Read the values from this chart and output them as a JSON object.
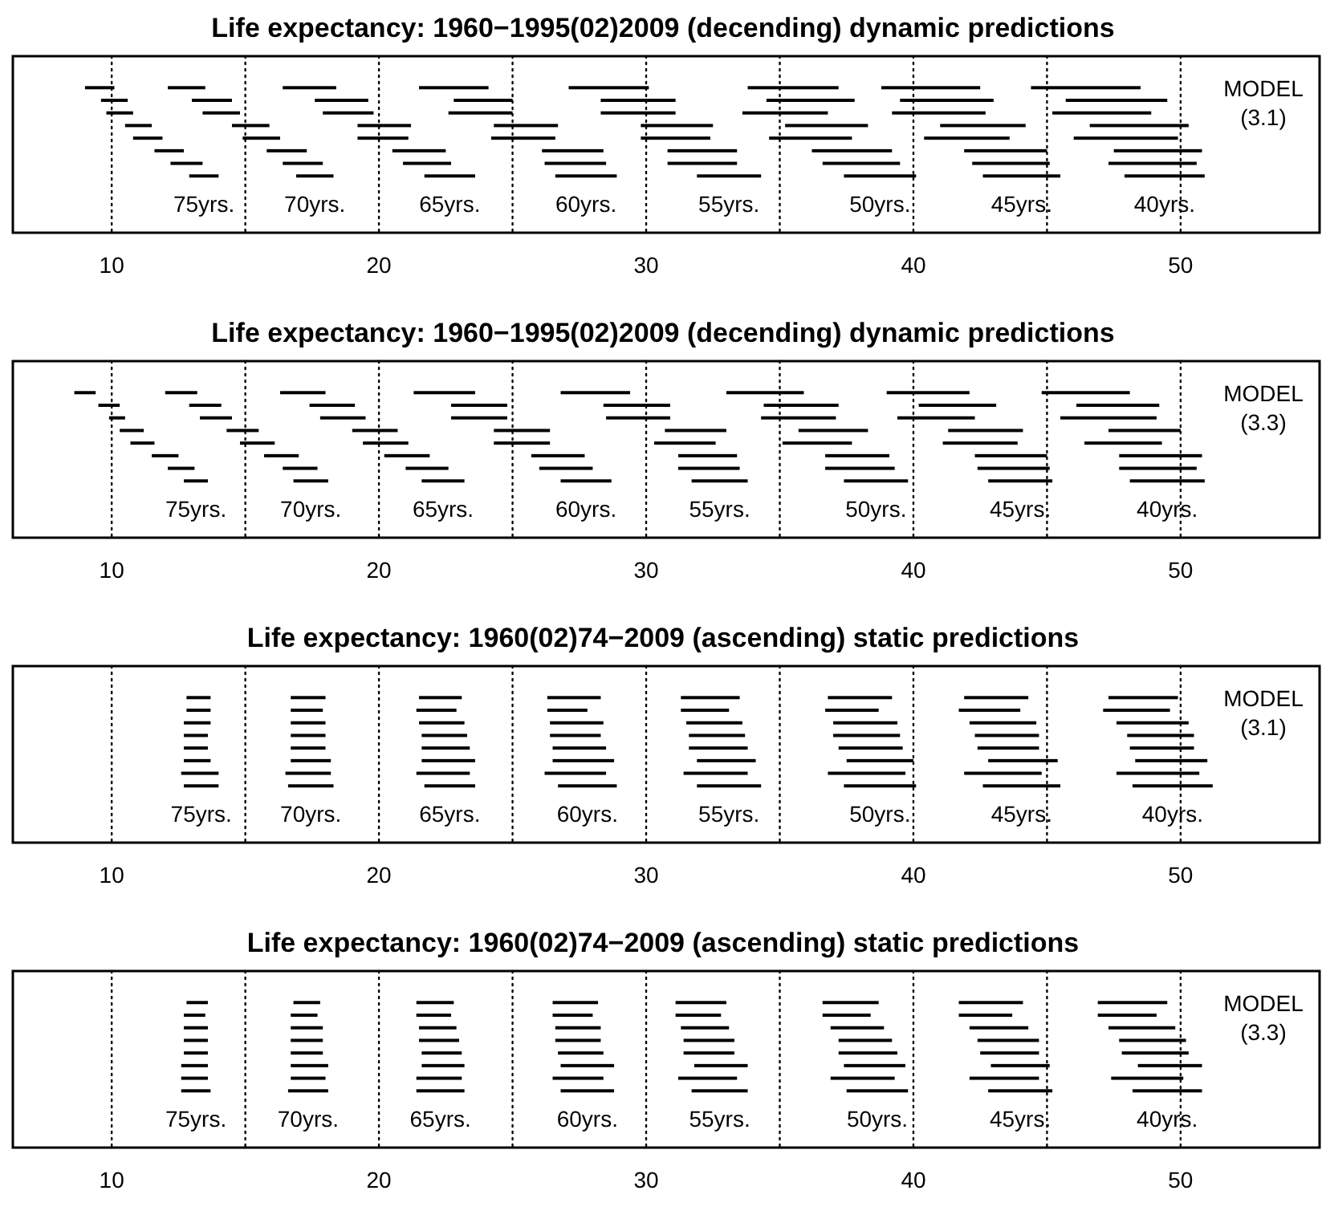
{
  "chart_data": [
    {
      "type": "bar",
      "orientation": "horizontal",
      "title": "Life expectancy: 1960−1995(02)2009 (decending) dynamic predictions",
      "categories": [
        null,
        null,
        null,
        null,
        null,
        null,
        null,
        null,
        null,
        null,
        null,
        null,
        null,
        null
      ],
      "xlim": [
        6.3,
        55.2
      ],
      "xticks": [
        10,
        20,
        30,
        40,
        50
      ],
      "tick_labels": "x",
      "series": [
        {
          "color": "#000000",
          "base": [
            null,
            null,
            9.0,
            9.6,
            9.8,
            10.5,
            10.8,
            11.6,
            12.2,
            12.9,
            null,
            null,
            null,
            null
          ],
          "values": [
            null,
            null,
            1.1,
            1.0,
            1.0,
            1.0,
            1.1,
            1.1,
            1.2,
            1.1,
            null,
            null,
            null,
            null
          ]
        },
        {
          "color": "#000000",
          "base": [
            null,
            null,
            12.1,
            13.0,
            13.4,
            14.5,
            14.9,
            15.8,
            16.4,
            16.9,
            null,
            null,
            null,
            null
          ],
          "values": [
            null,
            null,
            1.4,
            1.5,
            1.4,
            1.4,
            1.4,
            1.5,
            1.5,
            1.4,
            null,
            null,
            null,
            null
          ]
        },
        {
          "color": "#000000",
          "base": [
            null,
            null,
            16.4,
            17.6,
            17.9,
            19.2,
            19.2,
            20.5,
            20.9,
            21.7,
            null,
            null,
            null,
            null
          ],
          "values": [
            null,
            null,
            2.0,
            2.0,
            1.9,
            2.0,
            1.9,
            2.0,
            1.8,
            1.9,
            null,
            null,
            null,
            null
          ]
        },
        {
          "color": "#000000",
          "base": [
            null,
            null,
            21.5,
            22.8,
            22.6,
            24.3,
            24.2,
            26.1,
            26.2,
            26.6,
            null,
            null,
            null,
            null
          ],
          "values": [
            null,
            null,
            2.6,
            2.2,
            2.4,
            2.4,
            2.4,
            2.3,
            2.3,
            2.3,
            null,
            null,
            null,
            null
          ]
        },
        {
          "color": "#000000",
          "base": [
            null,
            null,
            27.1,
            28.3,
            28.3,
            29.8,
            29.8,
            30.8,
            30.8,
            31.9,
            null,
            null,
            null,
            null
          ],
          "values": [
            null,
            null,
            3.0,
            2.8,
            2.8,
            2.7,
            2.6,
            2.6,
            2.6,
            2.4,
            null,
            null,
            null,
            null
          ]
        },
        {
          "color": "#000000",
          "base": [
            null,
            null,
            33.8,
            34.5,
            33.6,
            35.2,
            34.6,
            36.2,
            36.6,
            37.4,
            null,
            null,
            null,
            null
          ],
          "values": [
            null,
            null,
            3.4,
            3.3,
            3.2,
            3.1,
            3.1,
            3.0,
            2.9,
            2.7,
            null,
            null,
            null,
            null
          ]
        },
        {
          "color": "#000000",
          "base": [
            null,
            null,
            38.8,
            39.5,
            39.2,
            41.0,
            40.4,
            41.9,
            42.2,
            42.6,
            null,
            null,
            null,
            null
          ],
          "values": [
            null,
            null,
            3.7,
            3.5,
            3.5,
            3.2,
            3.2,
            3.1,
            2.9,
            2.9,
            null,
            null,
            null,
            null
          ]
        },
        {
          "color": "#000000",
          "base": [
            null,
            null,
            44.4,
            45.7,
            45.2,
            46.6,
            46.0,
            47.5,
            47.3,
            47.9,
            null,
            null,
            null,
            null
          ],
          "values": [
            null,
            null,
            4.1,
            3.8,
            3.7,
            3.7,
            3.9,
            3.3,
            3.3,
            3.0,
            null,
            null,
            null,
            null
          ]
        }
      ],
      "ref_lines": [
        {
          "axis": "x",
          "value": 10,
          "line_style": "dotted"
        },
        {
          "axis": "x",
          "value": 15,
          "line_style": "dotted"
        },
        {
          "axis": "x",
          "value": 20,
          "line_style": "dotted"
        },
        {
          "axis": "x",
          "value": 25,
          "line_style": "dotted"
        },
        {
          "axis": "x",
          "value": 30,
          "line_style": "dotted"
        },
        {
          "axis": "x",
          "value": 35,
          "line_style": "dotted"
        },
        {
          "axis": "x",
          "value": 40,
          "line_style": "dotted"
        },
        {
          "axis": "x",
          "value": 45,
          "line_style": "dotted"
        },
        {
          "axis": "x",
          "value": 50,
          "line_style": "dotted"
        }
      ],
      "annotations": [
        "75yrs.",
        "70yrs.",
        "65yrs.",
        "60yrs.",
        "55yrs.",
        "50yrs.",
        "45yrs.",
        "40yrs.",
        "MODEL (3.1)"
      ]
    },
    {
      "type": "bar",
      "orientation": "horizontal",
      "title": "Life expectancy: 1960−1995(02)2009 (decending) dynamic predictions",
      "categories": [
        null,
        null,
        null,
        null,
        null,
        null,
        null,
        null,
        null,
        null,
        null,
        null,
        null,
        null
      ],
      "xlim": [
        6.3,
        55.2
      ],
      "xticks": [
        10,
        20,
        30,
        40,
        50
      ],
      "tick_labels": "x",
      "series": [
        {
          "color": "#000000",
          "base": [
            null,
            null,
            8.6,
            9.5,
            9.9,
            10.3,
            10.7,
            11.5,
            12.1,
            12.7,
            null,
            null,
            null,
            null
          ],
          "values": [
            null,
            null,
            0.8,
            0.8,
            0.6,
            0.9,
            0.9,
            1.0,
            1.0,
            0.9,
            null,
            null,
            null,
            null
          ]
        },
        {
          "color": "#000000",
          "base": [
            null,
            null,
            12.0,
            12.9,
            13.3,
            14.3,
            14.8,
            15.7,
            16.4,
            16.8,
            null,
            null,
            null,
            null
          ],
          "values": [
            null,
            null,
            1.2,
            1.2,
            1.2,
            1.2,
            1.3,
            1.3,
            1.3,
            1.3,
            null,
            null,
            null,
            null
          ]
        },
        {
          "color": "#000000",
          "base": [
            null,
            null,
            16.3,
            17.4,
            17.8,
            19.0,
            19.4,
            20.2,
            21.0,
            21.6,
            null,
            null,
            null,
            null
          ],
          "values": [
            null,
            null,
            1.7,
            1.7,
            1.7,
            1.7,
            1.7,
            1.7,
            1.6,
            1.6,
            null,
            null,
            null,
            null
          ]
        },
        {
          "color": "#000000",
          "base": [
            null,
            null,
            21.3,
            22.7,
            22.7,
            24.3,
            24.3,
            25.7,
            26.0,
            26.8,
            null,
            null,
            null,
            null
          ],
          "values": [
            null,
            null,
            2.3,
            2.1,
            2.1,
            2.1,
            2.1,
            2.0,
            2.0,
            1.9,
            null,
            null,
            null,
            null
          ]
        },
        {
          "color": "#000000",
          "base": [
            null,
            null,
            26.8,
            28.4,
            28.5,
            30.7,
            30.3,
            31.2,
            31.2,
            31.7,
            null,
            null,
            null,
            null
          ],
          "values": [
            null,
            null,
            2.6,
            2.5,
            2.4,
            2.3,
            2.3,
            2.2,
            2.3,
            2.1,
            null,
            null,
            null,
            null
          ]
        },
        {
          "color": "#000000",
          "base": [
            null,
            null,
            33.0,
            34.4,
            34.3,
            35.7,
            35.1,
            36.7,
            36.7,
            37.4,
            null,
            null,
            null,
            null
          ],
          "values": [
            null,
            null,
            2.9,
            2.8,
            2.8,
            2.6,
            2.6,
            2.4,
            2.6,
            2.4,
            null,
            null,
            null,
            null
          ]
        },
        {
          "color": "#000000",
          "base": [
            null,
            null,
            39.0,
            40.2,
            39.4,
            41.3,
            41.1,
            42.3,
            42.4,
            42.8,
            null,
            null,
            null,
            null
          ],
          "values": [
            null,
            null,
            3.1,
            2.9,
            2.9,
            2.8,
            2.8,
            2.7,
            2.7,
            2.4,
            null,
            null,
            null,
            null
          ]
        },
        {
          "color": "#000000",
          "base": [
            null,
            null,
            44.8,
            46.1,
            45.5,
            47.3,
            46.4,
            47.7,
            47.7,
            48.1,
            null,
            null,
            null,
            null
          ],
          "values": [
            null,
            null,
            3.3,
            3.1,
            3.6,
            2.7,
            2.9,
            3.1,
            2.9,
            2.8,
            null,
            null,
            null,
            null
          ]
        }
      ],
      "ref_lines": [
        {
          "axis": "x",
          "value": 10,
          "line_style": "dotted"
        },
        {
          "axis": "x",
          "value": 15,
          "line_style": "dotted"
        },
        {
          "axis": "x",
          "value": 20,
          "line_style": "dotted"
        },
        {
          "axis": "x",
          "value": 25,
          "line_style": "dotted"
        },
        {
          "axis": "x",
          "value": 30,
          "line_style": "dotted"
        },
        {
          "axis": "x",
          "value": 35,
          "line_style": "dotted"
        },
        {
          "axis": "x",
          "value": 40,
          "line_style": "dotted"
        },
        {
          "axis": "x",
          "value": 45,
          "line_style": "dotted"
        },
        {
          "axis": "x",
          "value": 50,
          "line_style": "dotted"
        }
      ],
      "annotations": [
        "75yrs.",
        "70yrs.",
        "65yrs.",
        "60yrs.",
        "55yrs.",
        "50yrs.",
        "45yrs.",
        "40yrs.",
        "MODEL (3.3)"
      ]
    },
    {
      "type": "bar",
      "orientation": "horizontal",
      "title": "Life expectancy: 1960(02)74−2009 (ascending) static predictions",
      "categories": [
        null,
        null,
        null,
        null,
        null,
        null,
        null,
        null,
        null,
        null,
        null,
        null,
        null,
        null
      ],
      "xlim": [
        6.3,
        55.2
      ],
      "xticks": [
        10,
        20,
        30,
        40,
        50
      ],
      "tick_labels": "x",
      "series": [
        {
          "color": "#000000",
          "base": [
            null,
            null,
            12.8,
            12.8,
            12.7,
            12.7,
            12.7,
            12.7,
            12.6,
            12.7,
            null,
            null,
            null,
            null
          ],
          "values": [
            null,
            null,
            0.9,
            0.9,
            1.0,
            0.9,
            0.9,
            1.0,
            1.4,
            1.3,
            null,
            null,
            null,
            null
          ]
        },
        {
          "color": "#000000",
          "base": [
            null,
            null,
            16.7,
            16.7,
            16.7,
            16.7,
            16.7,
            16.7,
            16.5,
            16.6,
            null,
            null,
            null,
            null
          ],
          "values": [
            null,
            null,
            1.3,
            1.2,
            1.3,
            1.3,
            1.3,
            1.5,
            1.7,
            1.7,
            null,
            null,
            null,
            null
          ]
        },
        {
          "color": "#000000",
          "base": [
            null,
            null,
            21.5,
            21.4,
            21.5,
            21.6,
            21.6,
            21.6,
            21.4,
            21.7,
            null,
            null,
            null,
            null
          ],
          "values": [
            null,
            null,
            1.6,
            1.5,
            1.7,
            1.7,
            1.8,
            2.0,
            2.0,
            1.9,
            null,
            null,
            null,
            null
          ]
        },
        {
          "color": "#000000",
          "base": [
            null,
            null,
            26.3,
            26.3,
            26.4,
            26.4,
            26.5,
            26.5,
            26.2,
            26.7,
            null,
            null,
            null,
            null
          ],
          "values": [
            null,
            null,
            2.0,
            1.5,
            2.0,
            1.9,
            2.0,
            2.3,
            2.3,
            2.2,
            null,
            null,
            null,
            null
          ]
        },
        {
          "color": "#000000",
          "base": [
            null,
            null,
            31.3,
            31.3,
            31.5,
            31.6,
            31.6,
            31.9,
            31.4,
            31.9,
            null,
            null,
            null,
            null
          ],
          "values": [
            null,
            null,
            2.2,
            1.8,
            2.1,
            2.1,
            2.2,
            2.2,
            2.4,
            2.4,
            null,
            null,
            null,
            null
          ]
        },
        {
          "color": "#000000",
          "base": [
            null,
            null,
            36.8,
            36.7,
            37.0,
            37.0,
            37.2,
            37.5,
            36.8,
            37.4,
            null,
            null,
            null,
            null
          ],
          "values": [
            null,
            null,
            2.4,
            2.0,
            2.4,
            2.5,
            2.4,
            2.5,
            2.9,
            2.7,
            null,
            null,
            null,
            null
          ]
        },
        {
          "color": "#000000",
          "base": [
            null,
            null,
            41.9,
            41.7,
            42.1,
            42.3,
            42.4,
            42.8,
            41.9,
            42.6,
            null,
            null,
            null,
            null
          ],
          "values": [
            null,
            null,
            2.4,
            2.3,
            2.5,
            2.4,
            2.3,
            2.6,
            2.9,
            2.9,
            null,
            null,
            null,
            null
          ]
        },
        {
          "color": "#000000",
          "base": [
            null,
            null,
            47.3,
            47.1,
            47.6,
            48.0,
            48.1,
            48.3,
            47.6,
            48.2,
            null,
            null,
            null,
            null
          ],
          "values": [
            null,
            null,
            2.6,
            2.5,
            2.7,
            2.5,
            2.4,
            2.7,
            3.1,
            3.0,
            null,
            null,
            null,
            null
          ]
        }
      ],
      "ref_lines": [
        {
          "axis": "x",
          "value": 10,
          "line_style": "dotted"
        },
        {
          "axis": "x",
          "value": 15,
          "line_style": "dotted"
        },
        {
          "axis": "x",
          "value": 20,
          "line_style": "dotted"
        },
        {
          "axis": "x",
          "value": 25,
          "line_style": "dotted"
        },
        {
          "axis": "x",
          "value": 30,
          "line_style": "dotted"
        },
        {
          "axis": "x",
          "value": 35,
          "line_style": "dotted"
        },
        {
          "axis": "x",
          "value": 40,
          "line_style": "dotted"
        },
        {
          "axis": "x",
          "value": 45,
          "line_style": "dotted"
        },
        {
          "axis": "x",
          "value": 50,
          "line_style": "dotted"
        }
      ],
      "annotations": [
        "75yrs.",
        "70yrs.",
        "65yrs.",
        "60yrs.",
        "55yrs.",
        "50yrs.",
        "45yrs.",
        "40yrs.",
        "MODEL (3.1)"
      ]
    },
    {
      "type": "bar",
      "orientation": "horizontal",
      "title": "Life expectancy: 1960(02)74−2009 (ascending) static predictions",
      "categories": [
        null,
        null,
        null,
        null,
        null,
        null,
        null,
        null,
        null,
        null,
        null,
        null,
        null,
        null
      ],
      "xlim": [
        6.3,
        55.2
      ],
      "xticks": [
        10,
        20,
        30,
        40,
        50
      ],
      "tick_labels": "x",
      "series": [
        {
          "color": "#000000",
          "base": [
            null,
            null,
            12.8,
            12.7,
            12.7,
            12.7,
            12.7,
            12.6,
            12.6,
            12.6,
            null,
            null,
            null,
            null
          ],
          "values": [
            null,
            null,
            0.8,
            0.8,
            0.9,
            0.9,
            0.9,
            1.0,
            1.0,
            1.1,
            null,
            null,
            null,
            null
          ]
        },
        {
          "color": "#000000",
          "base": [
            null,
            null,
            16.8,
            16.7,
            16.7,
            16.7,
            16.7,
            16.7,
            16.7,
            16.6,
            null,
            null,
            null,
            null
          ],
          "values": [
            null,
            null,
            1.0,
            1.0,
            1.2,
            1.2,
            1.2,
            1.4,
            1.3,
            1.5,
            null,
            null,
            null,
            null
          ]
        },
        {
          "color": "#000000",
          "base": [
            null,
            null,
            21.4,
            21.4,
            21.5,
            21.5,
            21.6,
            21.6,
            21.4,
            21.4,
            null,
            null,
            null,
            null
          ],
          "values": [
            null,
            null,
            1.4,
            1.3,
            1.4,
            1.5,
            1.5,
            1.6,
            1.7,
            1.8,
            null,
            null,
            null,
            null
          ]
        },
        {
          "color": "#000000",
          "base": [
            null,
            null,
            26.5,
            26.5,
            26.6,
            26.6,
            26.7,
            26.8,
            26.5,
            26.8,
            null,
            null,
            null,
            null
          ],
          "values": [
            null,
            null,
            1.7,
            1.5,
            1.7,
            1.7,
            1.7,
            2.0,
            1.9,
            2.0,
            null,
            null,
            null,
            null
          ]
        },
        {
          "color": "#000000",
          "base": [
            null,
            null,
            31.1,
            31.1,
            31.3,
            31.4,
            31.4,
            31.8,
            31.2,
            31.7,
            null,
            null,
            null,
            null
          ],
          "values": [
            null,
            null,
            1.9,
            1.7,
            1.8,
            1.9,
            1.9,
            2.0,
            2.2,
            2.1,
            null,
            null,
            null,
            null
          ]
        },
        {
          "color": "#000000",
          "base": [
            null,
            null,
            36.6,
            36.6,
            36.9,
            37.2,
            37.2,
            37.4,
            36.9,
            37.5,
            null,
            null,
            null,
            null
          ],
          "values": [
            null,
            null,
            2.1,
            1.8,
            2.0,
            2.0,
            2.2,
            2.3,
            2.4,
            2.3,
            null,
            null,
            null,
            null
          ]
        },
        {
          "color": "#000000",
          "base": [
            null,
            null,
            41.7,
            41.7,
            42.1,
            42.4,
            42.5,
            42.9,
            42.1,
            42.8,
            null,
            null,
            null,
            null
          ],
          "values": [
            null,
            null,
            2.4,
            2.0,
            2.2,
            2.3,
            2.2,
            2.2,
            2.6,
            2.4,
            null,
            null,
            null,
            null
          ]
        },
        {
          "color": "#000000",
          "base": [
            null,
            null,
            46.9,
            46.9,
            47.3,
            47.7,
            47.8,
            48.4,
            47.4,
            48.2,
            null,
            null,
            null,
            null
          ],
          "values": [
            null,
            null,
            2.6,
            2.2,
            2.5,
            2.5,
            2.5,
            2.4,
            2.7,
            2.6,
            null,
            null,
            null,
            null
          ]
        }
      ],
      "ref_lines": [
        {
          "axis": "x",
          "value": 10,
          "line_style": "dotted"
        },
        {
          "axis": "x",
          "value": 15,
          "line_style": "dotted"
        },
        {
          "axis": "x",
          "value": 20,
          "line_style": "dotted"
        },
        {
          "axis": "x",
          "value": 25,
          "line_style": "dotted"
        },
        {
          "axis": "x",
          "value": 30,
          "line_style": "dotted"
        },
        {
          "axis": "x",
          "value": 35,
          "line_style": "dotted"
        },
        {
          "axis": "x",
          "value": 40,
          "line_style": "dotted"
        },
        {
          "axis": "x",
          "value": 45,
          "line_style": "dotted"
        },
        {
          "axis": "x",
          "value": 50,
          "line_style": "dotted"
        }
      ],
      "annotations": [
        "75yrs.",
        "70yrs.",
        "65yrs.",
        "60yrs.",
        "55yrs.",
        "50yrs.",
        "45yrs.",
        "40yrs.",
        "MODEL (3.3)"
      ]
    }
  ]
}
